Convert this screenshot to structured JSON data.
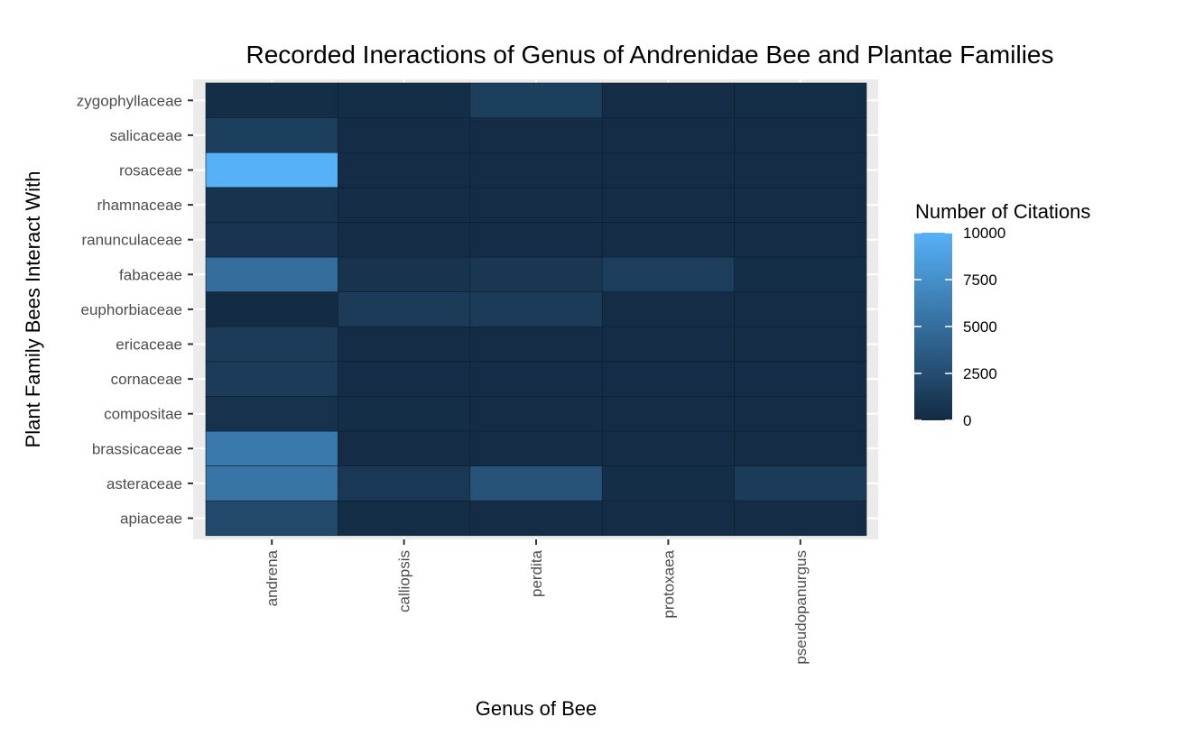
{
  "chart_data": {
    "type": "heatmap",
    "title": "Recorded Ineractions of Genus of Andrenidae Bee and Plantae Families",
    "xlabel": "Genus of Bee",
    "ylabel": "Plant Family Bees Interact With",
    "x_categories": [
      "andrena",
      "calliopsis",
      "perdita",
      "protoxaea",
      "pseudopanurgus"
    ],
    "y_categories": [
      "apiaceae",
      "asteraceae",
      "brassicaceae",
      "compositae",
      "cornaceae",
      "ericaceae",
      "euphorbiaceae",
      "fabaceae",
      "ranunculaceae",
      "rhamnaceae",
      "rosaceae",
      "salicaceae",
      "zygophyllaceae"
    ],
    "values": [
      [
        2200,
        150,
        100,
        100,
        100
      ],
      [
        5500,
        1000,
        3000,
        200,
        1200
      ],
      [
        5800,
        100,
        100,
        100,
        100
      ],
      [
        500,
        200,
        100,
        100,
        100
      ],
      [
        1200,
        100,
        100,
        100,
        100
      ],
      [
        1200,
        100,
        100,
        100,
        100
      ],
      [
        0,
        1200,
        1200,
        100,
        100
      ],
      [
        5000,
        600,
        900,
        1400,
        200
      ],
      [
        700,
        100,
        100,
        100,
        100
      ],
      [
        600,
        100,
        100,
        100,
        100
      ],
      [
        10000,
        100,
        100,
        100,
        100
      ],
      [
        1500,
        100,
        100,
        100,
        100
      ],
      [
        200,
        200,
        1500,
        100,
        150
      ]
    ],
    "legend": {
      "title": "Number of Citations",
      "ticks": [
        0,
        2500,
        5000,
        7500,
        10000
      ],
      "range": [
        0,
        10000
      ],
      "position": "right"
    },
    "colors": {
      "low": "#132B43",
      "high": "#56B1F7",
      "panel_background": "#EBEBEB",
      "gridline": "#FFFFFF"
    },
    "grid": true
  }
}
